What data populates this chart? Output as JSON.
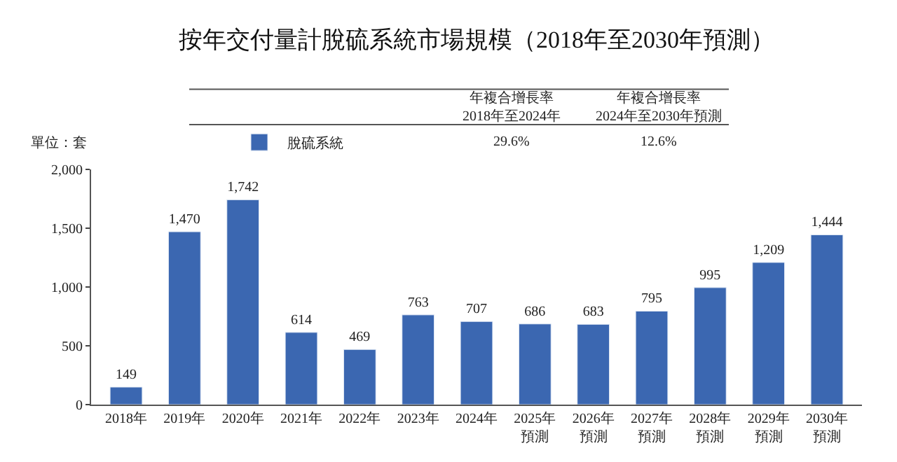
{
  "chart_data": {
    "type": "bar",
    "title": "按年交付量計脫硫系統市場規模（2018年至2030年預測）",
    "categories": [
      "2018年",
      "2019年",
      "2020年",
      "2021年",
      "2022年",
      "2023年",
      "2024年",
      "2025年預測",
      "2026年預測",
      "2027年預測",
      "2028年預測",
      "2029年預測",
      "2030年預測"
    ],
    "series": [
      {
        "name": "脫硫系統",
        "color": "#3b67b1",
        "values": [
          149,
          1470,
          1742,
          614,
          469,
          763,
          707,
          686,
          683,
          795,
          995,
          1209,
          1444
        ]
      }
    ],
    "ylim": [
      0,
      2000
    ],
    "yticks": [
      0,
      {
        "value": 500,
        "label": "500"
      },
      {
        "value": 1000,
        "label": "1,000"
      },
      {
        "value": 1500,
        "label": "1,500"
      },
      {
        "value": 2000,
        "label": "2,000"
      }
    ],
    "value_labels": [
      "149",
      "1,470",
      "1,742",
      "614",
      "469",
      "763",
      "707",
      "686",
      "683",
      "795",
      "995",
      "1,209",
      "1,444"
    ],
    "legend": "top left",
    "annotations": [
      "單位：套",
      "年複合增長率\n2018年至2024年",
      "29.6%",
      "年複合增長率\n2024年至2030年預測",
      "12.6%"
    ]
  }
}
